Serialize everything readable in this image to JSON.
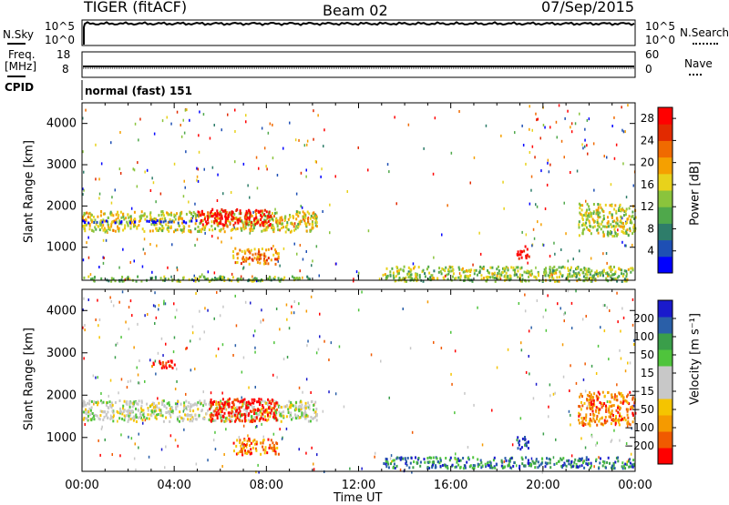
{
  "header": {
    "left": "TIGER (fitACF)",
    "center": "Beam 02",
    "right": "07/Sep/2015"
  },
  "noise_panel": {
    "left_label": "N.Sky",
    "right_label": "N.Search",
    "ticks": [
      "10^5",
      "10^0"
    ]
  },
  "freq_panel": {
    "left_label_1": "Freq.",
    "left_label_2": "[MHz]",
    "right_label": "Nave",
    "left_ticks": [
      "18",
      "8"
    ],
    "right_ticks": [
      "60",
      "0"
    ]
  },
  "cpid": {
    "label": "CPID",
    "mode": "normal (fast) 151"
  },
  "chart_data": [
    {
      "type": "heatmap",
      "title": "",
      "xlabel": "Time UT",
      "ylabel": "Slant Range [km]",
      "x_ticks": [
        "00:00",
        "04:00",
        "08:00",
        "12:00",
        "16:00",
        "20:00",
        "00:00"
      ],
      "y_ticks": [
        "1000",
        "2000",
        "3000",
        "4000"
      ],
      "xlim_hours": [
        0,
        24
      ],
      "ylim_km": [
        200,
        4500
      ],
      "colorbar": {
        "label": "Power [dB]",
        "ticks": [
          "4",
          "8",
          "12",
          "16",
          "20",
          "24",
          "28"
        ],
        "range": [
          0,
          30
        ],
        "colors": [
          "#0000ff",
          "#1e4fb4",
          "#2e7d6a",
          "#4fa84b",
          "#8ac43c",
          "#e8d21b",
          "#f5a000",
          "#f06a00",
          "#e22a00",
          "#ff0000"
        ]
      },
      "echo_regions": [
        {
          "t": [
            0.0,
            10.2
          ],
          "r": [
            1400,
            1900
          ],
          "level": 0.55
        },
        {
          "t": [
            5.0,
            8.2
          ],
          "r": [
            1550,
            1950
          ],
          "level": 0.95
        },
        {
          "t": [
            0.0,
            5.0
          ],
          "r": [
            1620,
            1680
          ],
          "level": 0.0
        },
        {
          "t": [
            6.5,
            8.5
          ],
          "r": [
            620,
            1000
          ],
          "level": 0.7
        },
        {
          "t": [
            0.0,
            10.0
          ],
          "r": [
            200,
            320
          ],
          "level": 0.4
        },
        {
          "t": [
            13.0,
            24.0
          ],
          "r": [
            200,
            560
          ],
          "level": 0.45
        },
        {
          "t": [
            18.8,
            19.4
          ],
          "r": [
            750,
            1050
          ],
          "level": 0.95
        },
        {
          "t": [
            21.5,
            24.0
          ],
          "r": [
            1300,
            2100
          ],
          "level": 0.5
        }
      ]
    },
    {
      "type": "heatmap",
      "title": "",
      "xlabel": "Time UT",
      "ylabel": "Slant Range [km]",
      "x_ticks": [
        "00:00",
        "04:00",
        "08:00",
        "12:00",
        "16:00",
        "20:00",
        "00:00"
      ],
      "y_ticks": [
        "1000",
        "2000",
        "3000",
        "4000"
      ],
      "xlim_hours": [
        0,
        24
      ],
      "ylim_km": [
        200,
        4500
      ],
      "colorbar": {
        "label": "Velocity [m s⁻¹]",
        "ticks": [
          "200",
          "100",
          "50",
          "15",
          "−15",
          "−50",
          "−100",
          "−200"
        ],
        "range": [
          -250,
          250
        ],
        "colors": [
          "#ff0000",
          "#f05a00",
          "#f59a00",
          "#f5c400",
          "#c8c8c8",
          "#c8c8c8",
          "#4fc43c",
          "#3a9e4a",
          "#2a5fa8",
          "#1a1acc"
        ]
      },
      "echo_regions": [
        {
          "t": [
            0.0,
            10.2
          ],
          "r": [
            1400,
            1900
          ],
          "level": 0.5
        },
        {
          "t": [
            5.5,
            8.5
          ],
          "r": [
            1400,
            1950
          ],
          "level": 0.05
        },
        {
          "t": [
            0.0,
            5.0
          ],
          "r": [
            1620,
            1680
          ],
          "level": 0.5
        },
        {
          "t": [
            6.5,
            8.5
          ],
          "r": [
            620,
            1000
          ],
          "level": 0.2
        },
        {
          "t": [
            3.0,
            4.0
          ],
          "r": [
            2650,
            2850
          ],
          "level": 0.05
        },
        {
          "t": [
            13.0,
            24.0
          ],
          "r": [
            300,
            560
          ],
          "level": 0.8
        },
        {
          "t": [
            18.8,
            19.4
          ],
          "r": [
            750,
            1050
          ],
          "level": 0.95
        },
        {
          "t": [
            21.5,
            24.0
          ],
          "r": [
            1300,
            2100
          ],
          "level": 0.2
        }
      ]
    }
  ]
}
